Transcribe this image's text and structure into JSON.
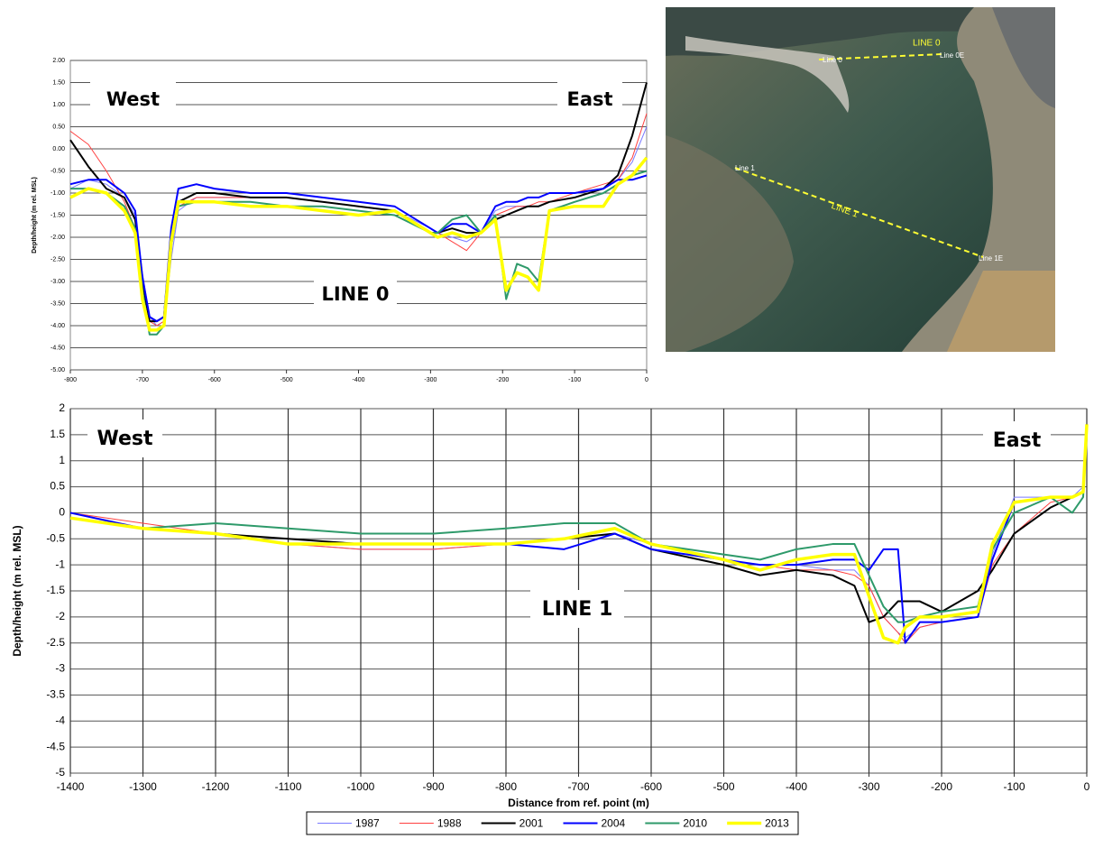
{
  "chart_data": [
    {
      "type": "line",
      "ylabel": "Depth/height (m rel. MSL)",
      "grid": "y",
      "annotations": [
        "West",
        "East",
        "LINE 0"
      ],
      "xlim": [
        -800,
        0
      ],
      "xticks": [
        -800,
        -700,
        -600,
        -500,
        -400,
        -300,
        -200,
        -100,
        0
      ],
      "ylim": [
        -5,
        2
      ],
      "yticks": [
        {
          "value": 2,
          "label": "2.00"
        },
        {
          "value": 1.5,
          "label": "1.50"
        },
        {
          "value": 1,
          "label": "1.00"
        },
        {
          "value": 0.5,
          "label": "0.50"
        },
        {
          "value": 0,
          "label": "0.00"
        },
        {
          "value": -0.5,
          "label": "-0.50"
        },
        {
          "value": -1,
          "label": "-1.00"
        },
        {
          "value": -1.5,
          "label": "-1.50"
        },
        {
          "value": -2,
          "label": "-2.00"
        },
        {
          "value": -2.5,
          "label": "-2.50"
        },
        {
          "value": -3,
          "label": "-3.00"
        },
        {
          "value": -3.5,
          "label": "-3.50"
        },
        {
          "value": -4,
          "label": "-4.00"
        },
        {
          "value": -4.5,
          "label": "-4.50"
        },
        {
          "value": -5,
          "label": "-5.00"
        }
      ],
      "x": [
        -800,
        -775,
        -750,
        -725,
        -710,
        -700,
        -690,
        -680,
        -670,
        -660,
        -650,
        -625,
        -600,
        -550,
        -500,
        -450,
        -400,
        -350,
        -300,
        -290,
        -270,
        -250,
        -230,
        -210,
        -195,
        -180,
        -165,
        -150,
        -135,
        -100,
        -60,
        -40,
        -20,
        0
      ],
      "series": [
        {
          "color": "#7b7bff",
          "values": [
            -0.9,
            -0.7,
            -0.8,
            -1.1,
            -1.5,
            -2.8,
            -3.8,
            -4.0,
            -3.9,
            -2.5,
            -1.4,
            -1.1,
            -1.1,
            -1.1,
            -1.1,
            -1.2,
            -1.3,
            -1.4,
            -1.8,
            -1.9,
            -2.0,
            -2.1,
            -1.9,
            -1.4,
            -1.3,
            -1.3,
            -1.3,
            -1.3,
            -1.2,
            -1.1,
            -0.9,
            -0.7,
            -0.3,
            0.5
          ]
        },
        {
          "color": "#ff4040",
          "values": [
            0.4,
            0.1,
            -0.5,
            -1.2,
            -1.8,
            -3.0,
            -3.9,
            -4.0,
            -3.9,
            -2.2,
            -1.3,
            -1.1,
            -1.1,
            -1.1,
            -1.1,
            -1.2,
            -1.3,
            -1.4,
            -1.9,
            -1.9,
            -2.1,
            -2.3,
            -1.9,
            -1.5,
            -1.4,
            -1.3,
            -1.3,
            -1.2,
            -1.2,
            -1.0,
            -0.8,
            -0.7,
            -0.2,
            0.8
          ]
        },
        {
          "color": "#000000",
          "values": [
            0.2,
            -0.4,
            -0.9,
            -1.1,
            -1.6,
            -3.0,
            -3.9,
            -3.9,
            -3.8,
            -2.0,
            -1.2,
            -1.0,
            -1.0,
            -1.1,
            -1.1,
            -1.2,
            -1.3,
            -1.4,
            -1.9,
            -1.9,
            -1.8,
            -1.9,
            -1.9,
            -1.6,
            -1.5,
            -1.4,
            -1.3,
            -1.3,
            -1.2,
            -1.1,
            -0.9,
            -0.6,
            0.3,
            1.5
          ]
        },
        {
          "color": "#0000ff",
          "values": [
            -0.8,
            -0.7,
            -0.7,
            -1.0,
            -1.4,
            -2.9,
            -3.8,
            -3.9,
            -3.8,
            -1.8,
            -0.9,
            -0.8,
            -0.9,
            -1.0,
            -1.0,
            -1.1,
            -1.2,
            -1.3,
            -1.8,
            -1.9,
            -1.7,
            -1.7,
            -1.9,
            -1.3,
            -1.2,
            -1.2,
            -1.1,
            -1.1,
            -1.0,
            -1.0,
            -0.9,
            -0.7,
            -0.7,
            -0.6
          ]
        },
        {
          "color": "#2e9a6a",
          "values": [
            -0.9,
            -0.9,
            -1.0,
            -1.3,
            -1.8,
            -3.2,
            -4.2,
            -4.2,
            -4.0,
            -2.2,
            -1.3,
            -1.2,
            -1.2,
            -1.2,
            -1.3,
            -1.3,
            -1.4,
            -1.5,
            -1.9,
            -1.9,
            -1.6,
            -1.5,
            -1.9,
            -1.5,
            -3.4,
            -2.6,
            -2.7,
            -3.0,
            -1.4,
            -1.2,
            -1.0,
            -0.8,
            -0.6,
            -0.5
          ]
        },
        {
          "color": "#ffff00",
          "values": [
            -1.1,
            -0.9,
            -1.0,
            -1.4,
            -1.9,
            -3.4,
            -4.1,
            -4.1,
            -4.0,
            -2.1,
            -1.2,
            -1.2,
            -1.2,
            -1.3,
            -1.3,
            -1.4,
            -1.5,
            -1.4,
            -1.9,
            -2.0,
            -1.9,
            -2.0,
            -1.9,
            -1.6,
            -3.2,
            -2.8,
            -2.9,
            -3.2,
            -1.4,
            -1.3,
            -1.3,
            -0.8,
            -0.6,
            -0.2
          ]
        }
      ]
    },
    {
      "type": "line",
      "ylabel": "Depth/height (m rel. MSL)",
      "xlabel": "Distance from ref. point (m)",
      "grid": "both",
      "annotations": [
        "West",
        "East",
        "LINE 1"
      ],
      "xlim": [
        -1400,
        0
      ],
      "xticks": [
        -1400,
        -1300,
        -1200,
        -1100,
        -1000,
        -900,
        -800,
        -700,
        -600,
        -500,
        -400,
        -300,
        -200,
        -100,
        0
      ],
      "ylim": [
        -5,
        2
      ],
      "yticks": [
        2,
        1.5,
        1,
        0.5,
        0,
        -0.5,
        -1,
        -1.5,
        -2,
        -2.5,
        -3,
        -3.5,
        -4,
        -4.5,
        -5
      ],
      "legend": "bottom",
      "x": [
        -1400,
        -1300,
        -1200,
        -1100,
        -1000,
        -900,
        -800,
        -720,
        -650,
        -600,
        -500,
        -450,
        -400,
        -350,
        -320,
        -300,
        -280,
        -260,
        -250,
        -230,
        -200,
        -150,
        -130,
        -100,
        -50,
        -20,
        -5,
        0
      ],
      "series": [
        {
          "name": "1987",
          "color": "#7b7bff",
          "values": [
            0.0,
            -0.3,
            -0.4,
            -0.6,
            -0.7,
            -0.7,
            -0.6,
            -0.5,
            -0.4,
            -0.6,
            -0.9,
            -1.0,
            -1.0,
            -1.1,
            -1.1,
            -1.4,
            -2.0,
            -2.3,
            -2.4,
            -2.2,
            -2.1,
            -2.0,
            -0.8,
            0.3,
            0.3,
            0.3,
            0.5,
            1.5
          ]
        },
        {
          "name": "1988",
          "color": "#ff4040",
          "values": [
            0.0,
            -0.2,
            -0.4,
            -0.6,
            -0.7,
            -0.7,
            -0.6,
            -0.5,
            -0.4,
            -0.7,
            -0.9,
            -1.0,
            -1.1,
            -1.1,
            -1.2,
            -1.4,
            -2.0,
            -2.3,
            -2.5,
            -2.2,
            -2.1,
            -2.0,
            -1.0,
            -0.4,
            0.2,
            0.3,
            0.4,
            1.5
          ]
        },
        {
          "name": "2001",
          "color": "#000000",
          "values": [
            -0.1,
            -0.3,
            -0.4,
            -0.5,
            -0.6,
            -0.6,
            -0.6,
            -0.5,
            -0.4,
            -0.7,
            -1.0,
            -1.2,
            -1.1,
            -1.2,
            -1.4,
            -2.1,
            -2.0,
            -1.7,
            -1.7,
            -1.7,
            -1.9,
            -1.5,
            -1.1,
            -0.4,
            0.1,
            0.3,
            0.4,
            1.7
          ]
        },
        {
          "name": "2004",
          "color": "#0000ff",
          "values": [
            0.0,
            -0.3,
            -0.4,
            -0.6,
            -0.6,
            -0.6,
            -0.6,
            -0.7,
            -0.4,
            -0.7,
            -0.9,
            -1.0,
            -1.0,
            -0.9,
            -0.9,
            -1.1,
            -0.7,
            -0.7,
            -2.5,
            -2.1,
            -2.1,
            -2.0,
            -0.9,
            0.2,
            0.3,
            0.3,
            0.4,
            1.6
          ]
        },
        {
          "name": "2010",
          "color": "#2e9a6a",
          "values": [
            -0.1,
            -0.3,
            -0.2,
            -0.3,
            -0.4,
            -0.4,
            -0.3,
            -0.2,
            -0.2,
            -0.6,
            -0.8,
            -0.9,
            -0.7,
            -0.6,
            -0.6,
            -1.2,
            -1.8,
            -2.1,
            -2.1,
            -2.0,
            -1.9,
            -1.8,
            -0.7,
            0.0,
            0.3,
            0.0,
            0.3,
            1.5
          ]
        },
        {
          "name": "2013",
          "color": "#ffff00",
          "values": [
            -0.1,
            -0.3,
            -0.4,
            -0.6,
            -0.6,
            -0.6,
            -0.6,
            -0.5,
            -0.3,
            -0.6,
            -0.9,
            -1.1,
            -0.9,
            -0.8,
            -0.8,
            -1.6,
            -2.4,
            -2.5,
            -2.2,
            -2.0,
            -2.0,
            -1.9,
            -0.6,
            0.2,
            0.3,
            0.3,
            0.4,
            1.7
          ]
        }
      ]
    }
  ],
  "map": {
    "labels": [
      "LINE 0",
      "Line 0",
      "Line 0E",
      "Line 1",
      "LINE 1",
      "Line 1E"
    ]
  }
}
